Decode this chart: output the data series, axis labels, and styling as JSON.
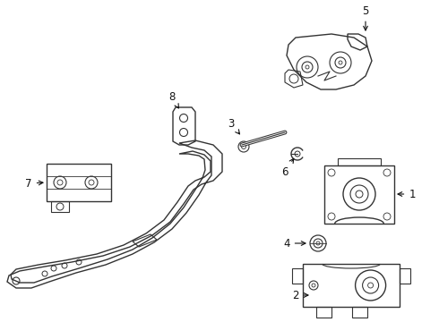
{
  "background_color": "#ffffff",
  "line_color": "#333333",
  "line_width": 1.0
}
